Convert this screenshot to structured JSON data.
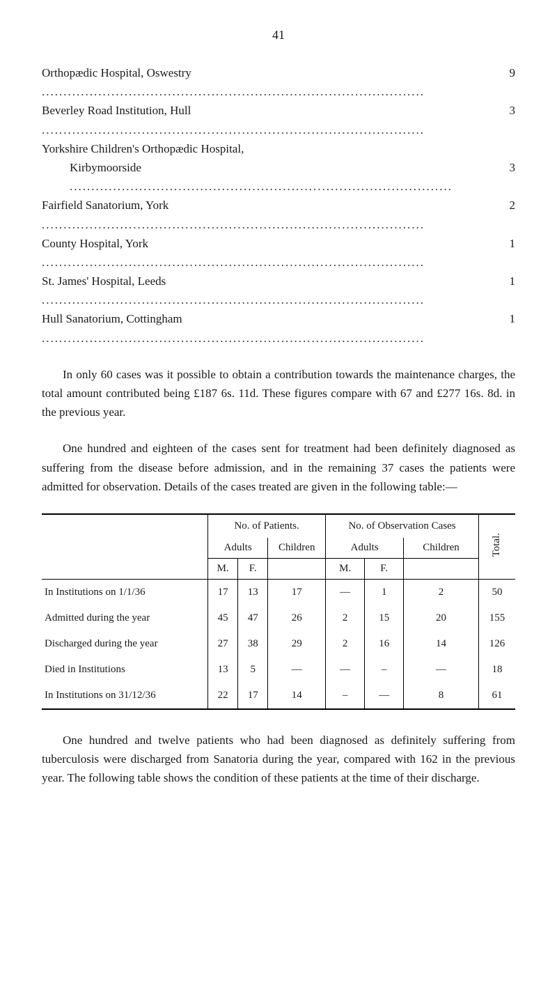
{
  "page_number": "41",
  "hospitals": [
    {
      "name": "Orthopædic Hospital, Oswestry",
      "count": "9",
      "indent": false
    },
    {
      "name": "Beverley Road Institution, Hull",
      "count": "3",
      "indent": false
    },
    {
      "name": "Yorkshire Children's Orthopædic Hospital,",
      "count": "",
      "indent": false
    },
    {
      "name": "Kirbymoorside",
      "count": "3",
      "indent": true
    },
    {
      "name": "Fairfield Sanatorium, York",
      "count": "2",
      "indent": false
    },
    {
      "name": "County Hospital, York",
      "count": "1",
      "indent": false
    },
    {
      "name": "St. James' Hospital, Leeds",
      "count": "1",
      "indent": false
    },
    {
      "name": "Hull Sanatorium, Cottingham",
      "count": "1",
      "indent": false
    }
  ],
  "paragraph1": "In only 60 cases was it possible to obtain a contribution towards the maintenance charges, the total amount contributed being £187 6s. 11d. These figures compare with 67 and £277 16s. 8d. in the previous year.",
  "paragraph2": "One hundred and eighteen of the cases sent for treatment had been definitely diagnosed as suffering from the disease before admission, and in the remaining 37 cases the patients were admitted for observation. Details of the cases treated are given in the following table:—",
  "table": {
    "header1": {
      "patients": "No. of Patients.",
      "observation": "No. of Observation Cases",
      "total": "Total."
    },
    "header2": {
      "adults": "Adults",
      "children": "Children"
    },
    "header3": {
      "m": "M.",
      "f": "F."
    },
    "rows": [
      {
        "label": "In Institutions on 1/1/36",
        "am": "17",
        "af": "13",
        "ac": "17",
        "om": "—",
        "of": "1",
        "oc": "2",
        "total": "50"
      },
      {
        "label": "Admitted during the year",
        "am": "45",
        "af": "47",
        "ac": "26",
        "om": "2",
        "of": "15",
        "oc": "20",
        "total": "155"
      },
      {
        "label": "Discharged during the year",
        "am": "27",
        "af": "38",
        "ac": "29",
        "om": "2",
        "of": "16",
        "oc": "14",
        "total": "126"
      },
      {
        "label": "Died in Institutions",
        "am": "13",
        "af": "5",
        "ac": "—",
        "om": "—",
        "of": "–",
        "oc": "—",
        "total": "18"
      },
      {
        "label": "In Institutions on 31/12/36",
        "am": "22",
        "af": "17",
        "ac": "14",
        "om": "–",
        "of": "—",
        "oc": "8",
        "total": "61"
      }
    ]
  },
  "paragraph3": "One hundred and twelve patients who had been diagnosed as definitely suffering from tuberculosis were discharged from Sanatoria during the year, compared with 162 in the previous year. The following table shows the condition of these patients at the time of their discharge."
}
